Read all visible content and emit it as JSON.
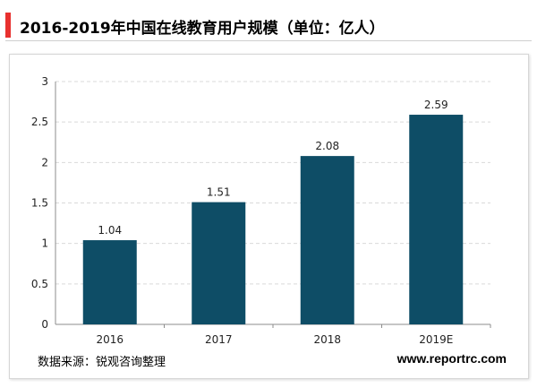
{
  "header": {
    "title": "2016-2019年中国在线教育用户规模（单位：亿人）",
    "accent_color": "#e8312f"
  },
  "chart_data": {
    "type": "bar",
    "categories": [
      "2016",
      "2017",
      "2018",
      "2019E"
    ],
    "values": [
      1.04,
      1.51,
      2.08,
      2.59
    ],
    "data_labels": [
      "1.04",
      "1.51",
      "2.08",
      "2.59"
    ],
    "ylim": [
      0,
      3
    ],
    "yticks": [
      "0",
      "0.5",
      "1",
      "1.5",
      "2",
      "2.5",
      "3"
    ],
    "grid": true,
    "bar_color": "#0e4d66"
  },
  "footer": {
    "source": "数据来源：锐观咨询整理",
    "website": "www.reportrc.com"
  }
}
